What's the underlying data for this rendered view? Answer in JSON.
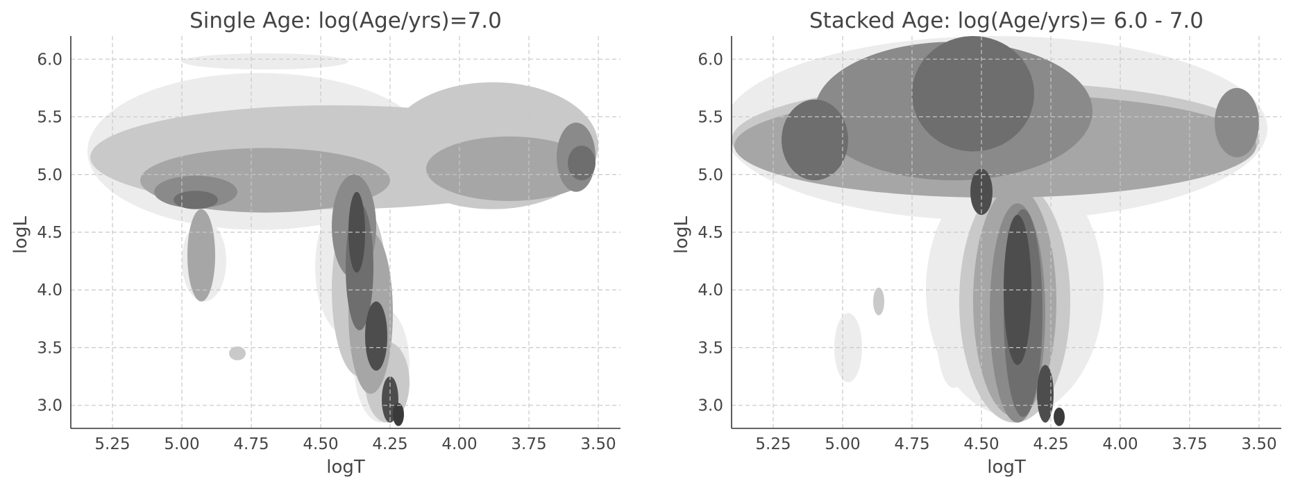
{
  "chart_data": [
    {
      "type": "contour",
      "title": "Single Age: log(Age/yrs)=7.0",
      "xlabel": "logT",
      "ylabel": "logL",
      "xlim": [
        5.4,
        3.42
      ],
      "ylim": [
        2.8,
        6.2
      ],
      "x_inverted": true,
      "xticks": [
        "5.25",
        "5.00",
        "4.75",
        "4.50",
        "4.25",
        "4.00",
        "3.75",
        "3.50"
      ],
      "yticks": [
        "3.0",
        "3.5",
        "4.0",
        "4.5",
        "5.0",
        "5.5",
        "6.0"
      ],
      "grid": true,
      "levels": [
        {
          "name": "level-1",
          "color": "#ececec",
          "regions": [
            {
              "cx": 4.72,
              "cy": 5.2,
              "rx": 0.62,
              "ry": 0.68
            },
            {
              "cx": 4.7,
              "cy": 5.98,
              "rx": 0.3,
              "ry": 0.07
            },
            {
              "cx": 4.4,
              "cy": 4.2,
              "rx": 0.12,
              "ry": 0.6
            },
            {
              "cx": 4.28,
              "cy": 3.35,
              "rx": 0.1,
              "ry": 0.5
            },
            {
              "cx": 4.92,
              "cy": 4.25,
              "rx": 0.08,
              "ry": 0.35
            }
          ]
        },
        {
          "name": "level-2",
          "color": "#c9c9c9",
          "regions": [
            {
              "cx": 4.45,
              "cy": 5.15,
              "rx": 0.88,
              "ry": 0.45
            },
            {
              "cx": 3.88,
              "cy": 5.25,
              "rx": 0.38,
              "ry": 0.55
            },
            {
              "cx": 4.36,
              "cy": 4.0,
              "rx": 0.1,
              "ry": 0.75
            },
            {
              "cx": 4.26,
              "cy": 3.2,
              "rx": 0.08,
              "ry": 0.35
            },
            {
              "cx": 4.8,
              "cy": 3.45,
              "rx": 0.03,
              "ry": 0.06
            }
          ]
        },
        {
          "name": "level-3",
          "color": "#a6a6a6",
          "regions": [
            {
              "cx": 4.7,
              "cy": 4.95,
              "rx": 0.45,
              "ry": 0.28
            },
            {
              "cx": 3.82,
              "cy": 5.05,
              "rx": 0.3,
              "ry": 0.28
            },
            {
              "cx": 4.32,
              "cy": 3.8,
              "rx": 0.08,
              "ry": 0.7
            },
            {
              "cx": 4.93,
              "cy": 4.3,
              "rx": 0.05,
              "ry": 0.4
            }
          ]
        },
        {
          "name": "level-4",
          "color": "#8a8a8a",
          "regions": [
            {
              "cx": 4.95,
              "cy": 4.85,
              "rx": 0.15,
              "ry": 0.14
            },
            {
              "cx": 4.38,
              "cy": 4.55,
              "rx": 0.08,
              "ry": 0.45
            },
            {
              "cx": 3.58,
              "cy": 5.15,
              "rx": 0.07,
              "ry": 0.3
            }
          ]
        },
        {
          "name": "level-5",
          "color": "#6e6e6e",
          "regions": [
            {
              "cx": 4.95,
              "cy": 4.78,
              "rx": 0.08,
              "ry": 0.08
            },
            {
              "cx": 4.36,
              "cy": 4.2,
              "rx": 0.05,
              "ry": 0.55
            },
            {
              "cx": 3.56,
              "cy": 5.1,
              "rx": 0.05,
              "ry": 0.15
            }
          ]
        },
        {
          "name": "level-6",
          "color": "#4d4d4d",
          "regions": [
            {
              "cx": 4.37,
              "cy": 4.5,
              "rx": 0.03,
              "ry": 0.35
            },
            {
              "cx": 4.3,
              "cy": 3.6,
              "rx": 0.04,
              "ry": 0.3
            },
            {
              "cx": 4.25,
              "cy": 3.05,
              "rx": 0.03,
              "ry": 0.2
            }
          ]
        },
        {
          "name": "level-7",
          "color": "#3a3a3a",
          "regions": [
            {
              "cx": 4.22,
              "cy": 2.92,
              "rx": 0.02,
              "ry": 0.1
            }
          ]
        }
      ]
    },
    {
      "type": "contour",
      "title": "Stacked Age: log(Age/yrs)= 6.0 - 7.0",
      "xlabel": "logT",
      "ylabel": "logL",
      "xlim": [
        5.4,
        3.42
      ],
      "ylim": [
        2.8,
        6.2
      ],
      "x_inverted": true,
      "xticks": [
        "5.25",
        "5.00",
        "4.75",
        "4.50",
        "4.25",
        "4.00",
        "3.75",
        "3.50"
      ],
      "yticks": [
        "3.0",
        "3.5",
        "4.0",
        "4.5",
        "5.0",
        "5.5",
        "6.0"
      ],
      "grid": true,
      "levels": [
        {
          "name": "level-1",
          "color": "#ececec",
          "regions": [
            {
              "cx": 4.45,
              "cy": 5.4,
              "rx": 0.98,
              "ry": 0.8
            },
            {
              "cx": 4.38,
              "cy": 4.0,
              "rx": 0.32,
              "ry": 1.1
            },
            {
              "cx": 4.6,
              "cy": 3.6,
              "rx": 0.06,
              "ry": 0.45
            },
            {
              "cx": 4.98,
              "cy": 3.5,
              "rx": 0.05,
              "ry": 0.3
            }
          ]
        },
        {
          "name": "level-2",
          "color": "#c9c9c9",
          "regions": [
            {
              "cx": 4.45,
              "cy": 5.3,
              "rx": 0.95,
              "ry": 0.5
            },
            {
              "cx": 4.38,
              "cy": 3.9,
              "rx": 0.2,
              "ry": 1.05
            },
            {
              "cx": 4.87,
              "cy": 3.9,
              "rx": 0.02,
              "ry": 0.12
            }
          ]
        },
        {
          "name": "level-3",
          "color": "#a6a6a6",
          "regions": [
            {
              "cx": 4.45,
              "cy": 5.25,
              "rx": 0.94,
              "ry": 0.45
            },
            {
              "cx": 4.38,
              "cy": 3.9,
              "rx": 0.15,
              "ry": 1.0
            }
          ]
        },
        {
          "name": "level-4",
          "color": "#8a8a8a",
          "regions": [
            {
              "cx": 4.6,
              "cy": 5.55,
              "rx": 0.5,
              "ry": 0.6
            },
            {
              "cx": 3.58,
              "cy": 5.45,
              "rx": 0.08,
              "ry": 0.3
            },
            {
              "cx": 4.37,
              "cy": 3.8,
              "rx": 0.1,
              "ry": 0.95
            }
          ]
        },
        {
          "name": "level-5",
          "color": "#6e6e6e",
          "regions": [
            {
              "cx": 4.53,
              "cy": 5.7,
              "rx": 0.22,
              "ry": 0.5
            },
            {
              "cx": 5.1,
              "cy": 5.3,
              "rx": 0.12,
              "ry": 0.35
            },
            {
              "cx": 4.35,
              "cy": 3.8,
              "rx": 0.07,
              "ry": 0.9
            }
          ]
        },
        {
          "name": "level-6",
          "color": "#4d4d4d",
          "regions": [
            {
              "cx": 4.5,
              "cy": 4.85,
              "rx": 0.04,
              "ry": 0.2
            },
            {
              "cx": 4.37,
              "cy": 4.0,
              "rx": 0.05,
              "ry": 0.65
            },
            {
              "cx": 4.27,
              "cy": 3.1,
              "rx": 0.03,
              "ry": 0.25
            }
          ]
        },
        {
          "name": "level-7",
          "color": "#3a3a3a",
          "regions": [
            {
              "cx": 4.22,
              "cy": 2.9,
              "rx": 0.02,
              "ry": 0.08
            }
          ]
        }
      ]
    }
  ]
}
